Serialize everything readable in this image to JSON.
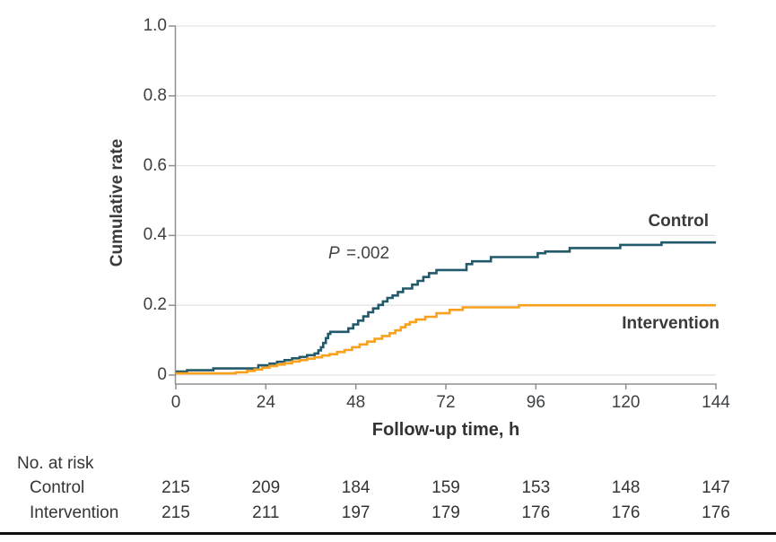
{
  "colors": {
    "control": "#235a6b",
    "intervention": "#f9a11c",
    "grid": "#e4e4e4",
    "axis": "#8f8f8f",
    "text": "#3d4144"
  },
  "chart_data": {
    "type": "line",
    "subtype": "step-after",
    "title": "",
    "xlabel": "Follow-up time, h",
    "ylabel": "Cumulative rate",
    "xlim": [
      0,
      144
    ],
    "ylim": [
      0,
      1.0
    ],
    "xticks": [
      0,
      24,
      48,
      72,
      96,
      120,
      144
    ],
    "yticks": [
      {
        "v": 1.0,
        "label": "1.0"
      },
      {
        "v": 0.8,
        "label": "0.8"
      },
      {
        "v": 0.6,
        "label": "0.6"
      },
      {
        "v": 0.4,
        "label": "0.4"
      },
      {
        "v": 0.2,
        "label": "0.2"
      },
      {
        "v": 0.0,
        "label": "0"
      }
    ],
    "grid": "horizontal",
    "legend_position": "end-of-line",
    "annotation": {
      "p_italic": "P",
      "p_rest": " =.002"
    },
    "series": [
      {
        "name": "Control",
        "color_key": "control",
        "final_value": 0.38,
        "points": [
          [
            0,
            0.01
          ],
          [
            3,
            0.014
          ],
          [
            10,
            0.019
          ],
          [
            22,
            0.028
          ],
          [
            25,
            0.033
          ],
          [
            27,
            0.038
          ],
          [
            29,
            0.043
          ],
          [
            31,
            0.048
          ],
          [
            33,
            0.052
          ],
          [
            35,
            0.057
          ],
          [
            37,
            0.062
          ],
          [
            38,
            0.071
          ],
          [
            38.7,
            0.08
          ],
          [
            39.3,
            0.092
          ],
          [
            40,
            0.106
          ],
          [
            40.6,
            0.118
          ],
          [
            41.2,
            0.124
          ],
          [
            46,
            0.134
          ],
          [
            47.3,
            0.145
          ],
          [
            48.6,
            0.156
          ],
          [
            50,
            0.168
          ],
          [
            51.3,
            0.18
          ],
          [
            52.6,
            0.191
          ],
          [
            54,
            0.201
          ],
          [
            55.2,
            0.211
          ],
          [
            56.4,
            0.221
          ],
          [
            57.8,
            0.228
          ],
          [
            59.2,
            0.238
          ],
          [
            60.6,
            0.248
          ],
          [
            63,
            0.259
          ],
          [
            64.5,
            0.27
          ],
          [
            66,
            0.281
          ],
          [
            67.5,
            0.292
          ],
          [
            69.5,
            0.301
          ],
          [
            77.5,
            0.318
          ],
          [
            79,
            0.326
          ],
          [
            84,
            0.338
          ],
          [
            96.5,
            0.349
          ],
          [
            98.5,
            0.354
          ],
          [
            105,
            0.364
          ],
          [
            118.5,
            0.373
          ],
          [
            129.5,
            0.38
          ],
          [
            144,
            0.38
          ]
        ]
      },
      {
        "name": "Intervention",
        "color_key": "intervention",
        "final_value": 0.2,
        "points": [
          [
            0,
            0.005
          ],
          [
            16,
            0.008
          ],
          [
            19,
            0.012
          ],
          [
            21,
            0.016
          ],
          [
            23,
            0.021
          ],
          [
            25,
            0.026
          ],
          [
            27,
            0.03
          ],
          [
            29,
            0.034
          ],
          [
            31,
            0.039
          ],
          [
            33,
            0.043
          ],
          [
            35,
            0.047
          ],
          [
            37,
            0.051
          ],
          [
            39,
            0.056
          ],
          [
            41,
            0.06
          ],
          [
            43,
            0.066
          ],
          [
            45,
            0.072
          ],
          [
            47,
            0.08
          ],
          [
            49,
            0.088
          ],
          [
            51,
            0.096
          ],
          [
            53,
            0.104
          ],
          [
            55,
            0.112
          ],
          [
            57,
            0.12
          ],
          [
            58.5,
            0.128
          ],
          [
            60,
            0.137
          ],
          [
            61.2,
            0.145
          ],
          [
            62.4,
            0.152
          ],
          [
            64,
            0.159
          ],
          [
            66.5,
            0.167
          ],
          [
            69.5,
            0.177
          ],
          [
            73,
            0.187
          ],
          [
            76.5,
            0.194
          ],
          [
            91.5,
            0.2
          ],
          [
            144,
            0.2
          ]
        ]
      }
    ]
  },
  "risk_table": {
    "header": "No. at risk",
    "time_points": [
      0,
      24,
      48,
      72,
      96,
      120,
      144
    ],
    "rows": [
      {
        "label": "Control",
        "values": [
          215,
          209,
          184,
          159,
          153,
          148,
          147
        ]
      },
      {
        "label": "Intervention",
        "values": [
          215,
          211,
          197,
          179,
          176,
          176,
          176
        ]
      }
    ]
  }
}
